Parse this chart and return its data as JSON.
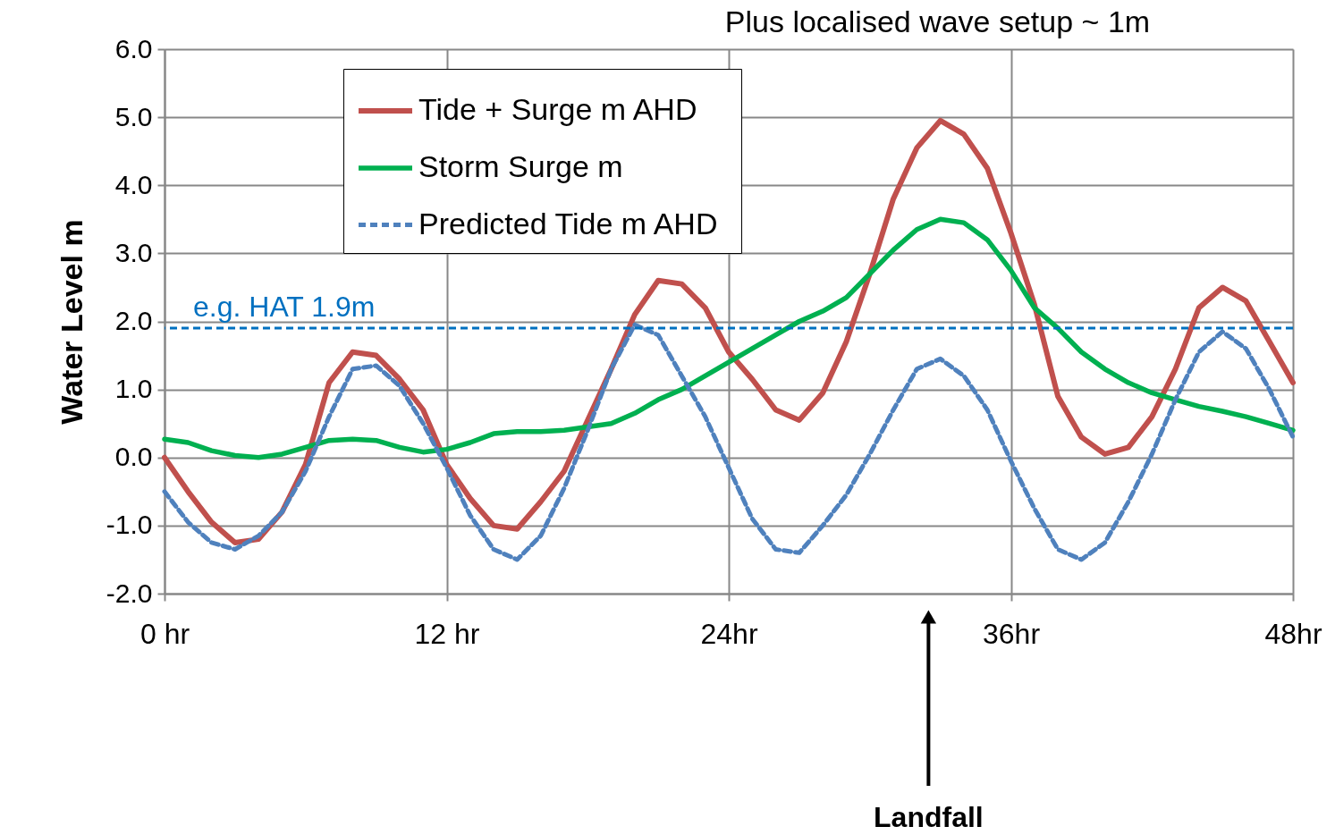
{
  "chart_data": {
    "type": "line",
    "ylabel": "Water  Level  m",
    "x": [
      0,
      1,
      2,
      3,
      4,
      5,
      6,
      7,
      8,
      9,
      10,
      11,
      12,
      13,
      14,
      15,
      16,
      17,
      18,
      19,
      20,
      21,
      22,
      23,
      24,
      25,
      26,
      27,
      28,
      29,
      30,
      31,
      32,
      33,
      34,
      35,
      36,
      37,
      38,
      39,
      40,
      41,
      42,
      43,
      44,
      45,
      46,
      47,
      48
    ],
    "series": [
      {
        "name": "Tide + Surge m AHD",
        "color": "#c0504d",
        "line_style": "solid",
        "values": [
          0.0,
          -0.5,
          -0.95,
          -1.25,
          -1.2,
          -0.8,
          -0.1,
          1.1,
          1.55,
          1.5,
          1.15,
          0.7,
          -0.1,
          -0.6,
          -1.0,
          -1.05,
          -0.65,
          -0.2,
          0.55,
          1.3,
          2.1,
          2.6,
          2.55,
          2.2,
          1.55,
          1.15,
          0.7,
          0.55,
          0.95,
          1.7,
          2.7,
          3.8,
          4.55,
          4.95,
          4.75,
          4.25,
          3.3,
          2.25,
          0.9,
          0.3,
          0.05,
          0.15,
          0.6,
          1.3,
          2.2,
          2.5,
          2.3,
          1.7,
          1.1
        ]
      },
      {
        "name": "Storm Surge m",
        "color": "#00b050",
        "line_style": "solid",
        "values": [
          0.27,
          0.22,
          0.1,
          0.03,
          0.0,
          0.05,
          0.15,
          0.25,
          0.27,
          0.25,
          0.15,
          0.08,
          0.12,
          0.22,
          0.35,
          0.38,
          0.38,
          0.4,
          0.45,
          0.5,
          0.65,
          0.85,
          1.0,
          1.2,
          1.4,
          1.6,
          1.8,
          2.0,
          2.15,
          2.35,
          2.7,
          3.05,
          3.35,
          3.5,
          3.45,
          3.2,
          2.75,
          2.2,
          1.9,
          1.55,
          1.3,
          1.1,
          0.95,
          0.85,
          0.75,
          0.68,
          0.6,
          0.5,
          0.4
        ]
      },
      {
        "name": "Predicted Tide  m AHD",
        "color": "#4f81bd",
        "line_style": "dashed",
        "values": [
          -0.5,
          -0.95,
          -1.25,
          -1.35,
          -1.15,
          -0.8,
          -0.2,
          0.6,
          1.3,
          1.35,
          1.05,
          0.5,
          -0.15,
          -0.85,
          -1.35,
          -1.5,
          -1.15,
          -0.45,
          0.4,
          1.3,
          1.95,
          1.8,
          1.2,
          0.6,
          -0.15,
          -0.9,
          -1.35,
          -1.4,
          -1.0,
          -0.55,
          0.05,
          0.7,
          1.3,
          1.45,
          1.2,
          0.7,
          -0.05,
          -0.75,
          -1.35,
          -1.5,
          -1.25,
          -0.65,
          0.05,
          0.85,
          1.55,
          1.85,
          1.6,
          1.0,
          0.3
        ]
      }
    ],
    "xlim": [
      0,
      48
    ],
    "xticks": [
      {
        "value": 0,
        "label": "0 hr"
      },
      {
        "value": 12,
        "label": "12 hr"
      },
      {
        "value": 24,
        "label": "24hr"
      },
      {
        "value": 36,
        "label": "36hr"
      },
      {
        "value": 48,
        "label": "48hr"
      }
    ],
    "ylim": [
      -2,
      6
    ],
    "yticks": [
      {
        "value": -2,
        "label": "-2.0"
      },
      {
        "value": -1,
        "label": "-1.0"
      },
      {
        "value": 0,
        "label": "0.0"
      },
      {
        "value": 1,
        "label": "1.0"
      },
      {
        "value": 2,
        "label": "2.0"
      },
      {
        "value": 3,
        "label": "3.0"
      },
      {
        "value": 4,
        "label": "4.0"
      },
      {
        "value": 5,
        "label": "5.0"
      },
      {
        "value": 6,
        "label": "6.0"
      }
    ],
    "ref_lines": [
      {
        "axis": "y",
        "value": 1.9,
        "label": "e.g. HAT 1.9m",
        "color": "#0070c0",
        "line_style": "dashed"
      }
    ],
    "annotations": [
      "Plus localised wave setup ~ 1m",
      "Landfall"
    ],
    "grid": true,
    "legend": "top",
    "marker": "none"
  }
}
